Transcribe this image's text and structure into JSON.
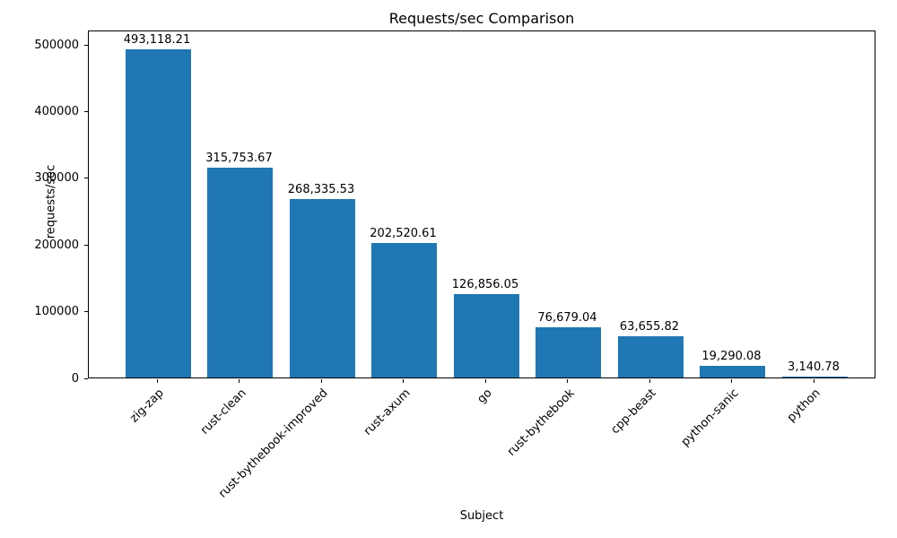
{
  "chart_data": {
    "type": "bar",
    "title": "Requests/sec Comparison",
    "xlabel": "Subject",
    "ylabel": "requests/sec",
    "categories": [
      "zig-zap",
      "rust-clean",
      "rust-bythebook-improved",
      "rust-axum",
      "go",
      "rust-bythebook",
      "cpp-beast",
      "python-sanic",
      "python"
    ],
    "values": [
      493118.21,
      315753.67,
      268335.53,
      202520.61,
      126856.05,
      76679.04,
      63655.82,
      19290.08,
      3140.78
    ],
    "value_labels": [
      "493,118.21",
      "315,753.67",
      "268,335.53",
      "202,520.61",
      "126,856.05",
      "76,679.04",
      "63,655.82",
      "19,290.08",
      "3,140.78"
    ],
    "ylim": [
      0,
      500000
    ],
    "yticks": [
      0,
      100000,
      200000,
      300000,
      400000,
      500000
    ],
    "ytick_labels": [
      "0",
      "100000",
      "200000",
      "300000",
      "400000",
      "500000"
    ],
    "bar_color": "#1f77b4",
    "grid": false,
    "legend": "none",
    "xtick_rotation_deg": 45
  }
}
